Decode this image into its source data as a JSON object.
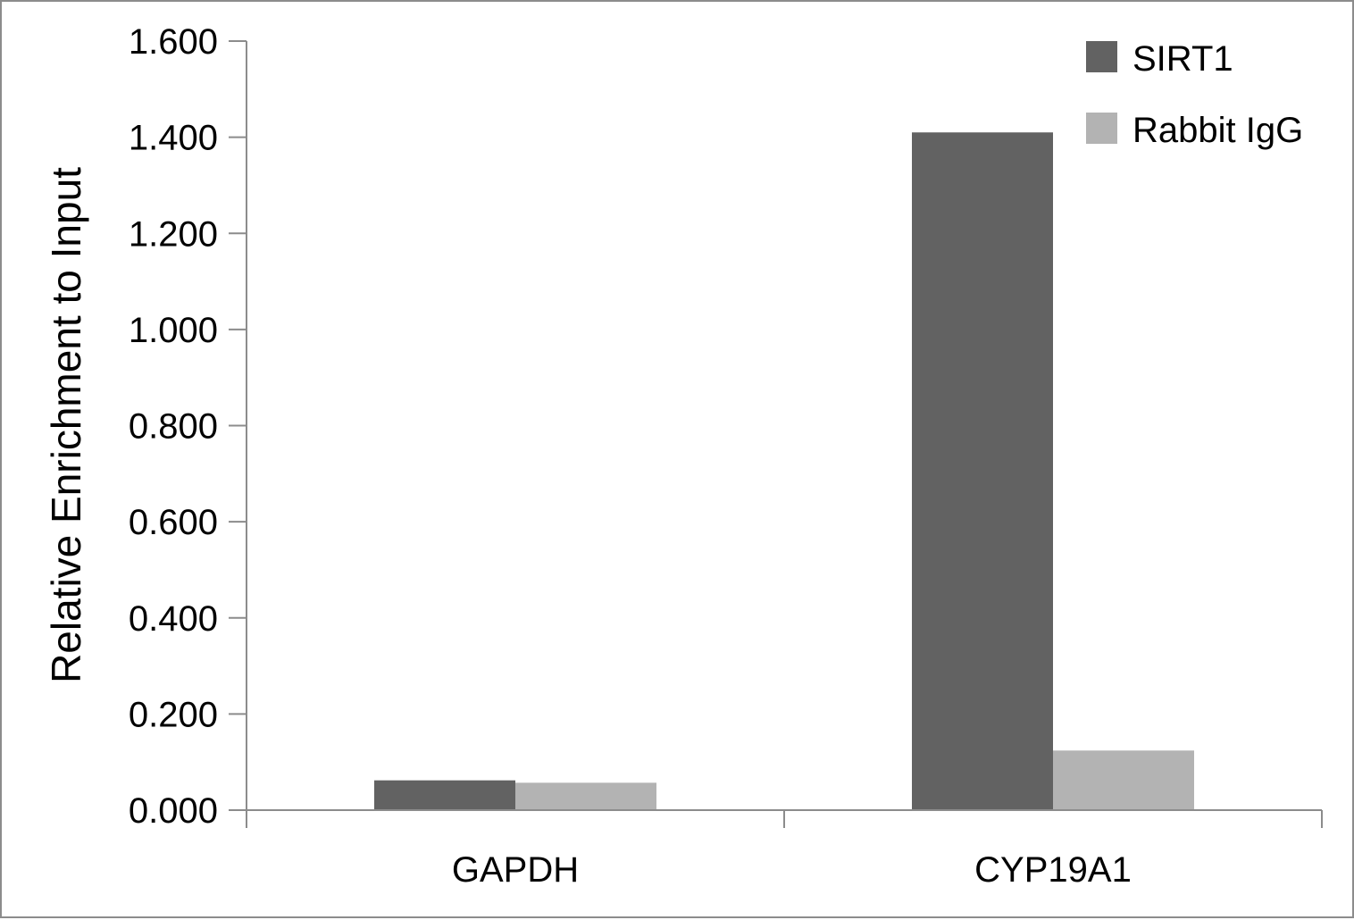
{
  "chart_data": {
    "type": "bar",
    "title": "",
    "xlabel": "",
    "ylabel": "Relative Enrichment to Input",
    "categories": [
      "GAPDH",
      "CYP19A1"
    ],
    "series": [
      {
        "name": "SIRT1",
        "color": "#626262",
        "values": [
          0.062,
          1.41
        ]
      },
      {
        "name": "Rabbit IgG",
        "color": "#b3b3b3",
        "values": [
          0.057,
          0.124
        ]
      }
    ],
    "ylim": [
      0,
      1.6
    ],
    "yticks": [
      "0.000",
      "0.200",
      "0.400",
      "0.600",
      "0.800",
      "1.000",
      "1.200",
      "1.400",
      "1.600"
    ],
    "grid": false,
    "legend_position": "top-right"
  }
}
